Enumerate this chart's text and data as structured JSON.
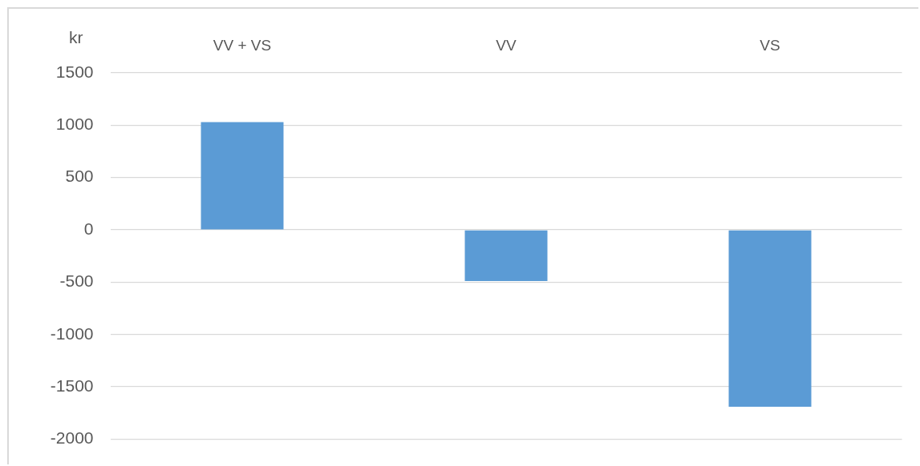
{
  "chart_data": {
    "type": "bar",
    "ylabel": "kr",
    "categories": [
      "VV + VS",
      "VV",
      "VS"
    ],
    "values": [
      1030,
      -490,
      -1690
    ],
    "color": "#5b9bd5",
    "ylim": [
      -2000,
      1500
    ],
    "yticks": [
      -2000,
      -1500,
      -1000,
      -500,
      0,
      500,
      1000,
      1500
    ],
    "grid": "y"
  }
}
